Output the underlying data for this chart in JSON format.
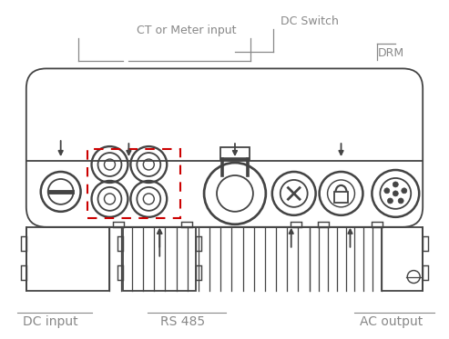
{
  "bg_color": "#ffffff",
  "line_color": "#444444",
  "label_color": "#888888",
  "dashed_box_color": "#cc0000",
  "fig_width": 4.93,
  "fig_height": 3.73,
  "labels": {
    "ct_meter": "CT or Meter input",
    "dc_switch": "DC Switch",
    "drm": "DRM",
    "dc_input": "DC input",
    "rs485": "RS 485",
    "ac_output": "AC output"
  }
}
